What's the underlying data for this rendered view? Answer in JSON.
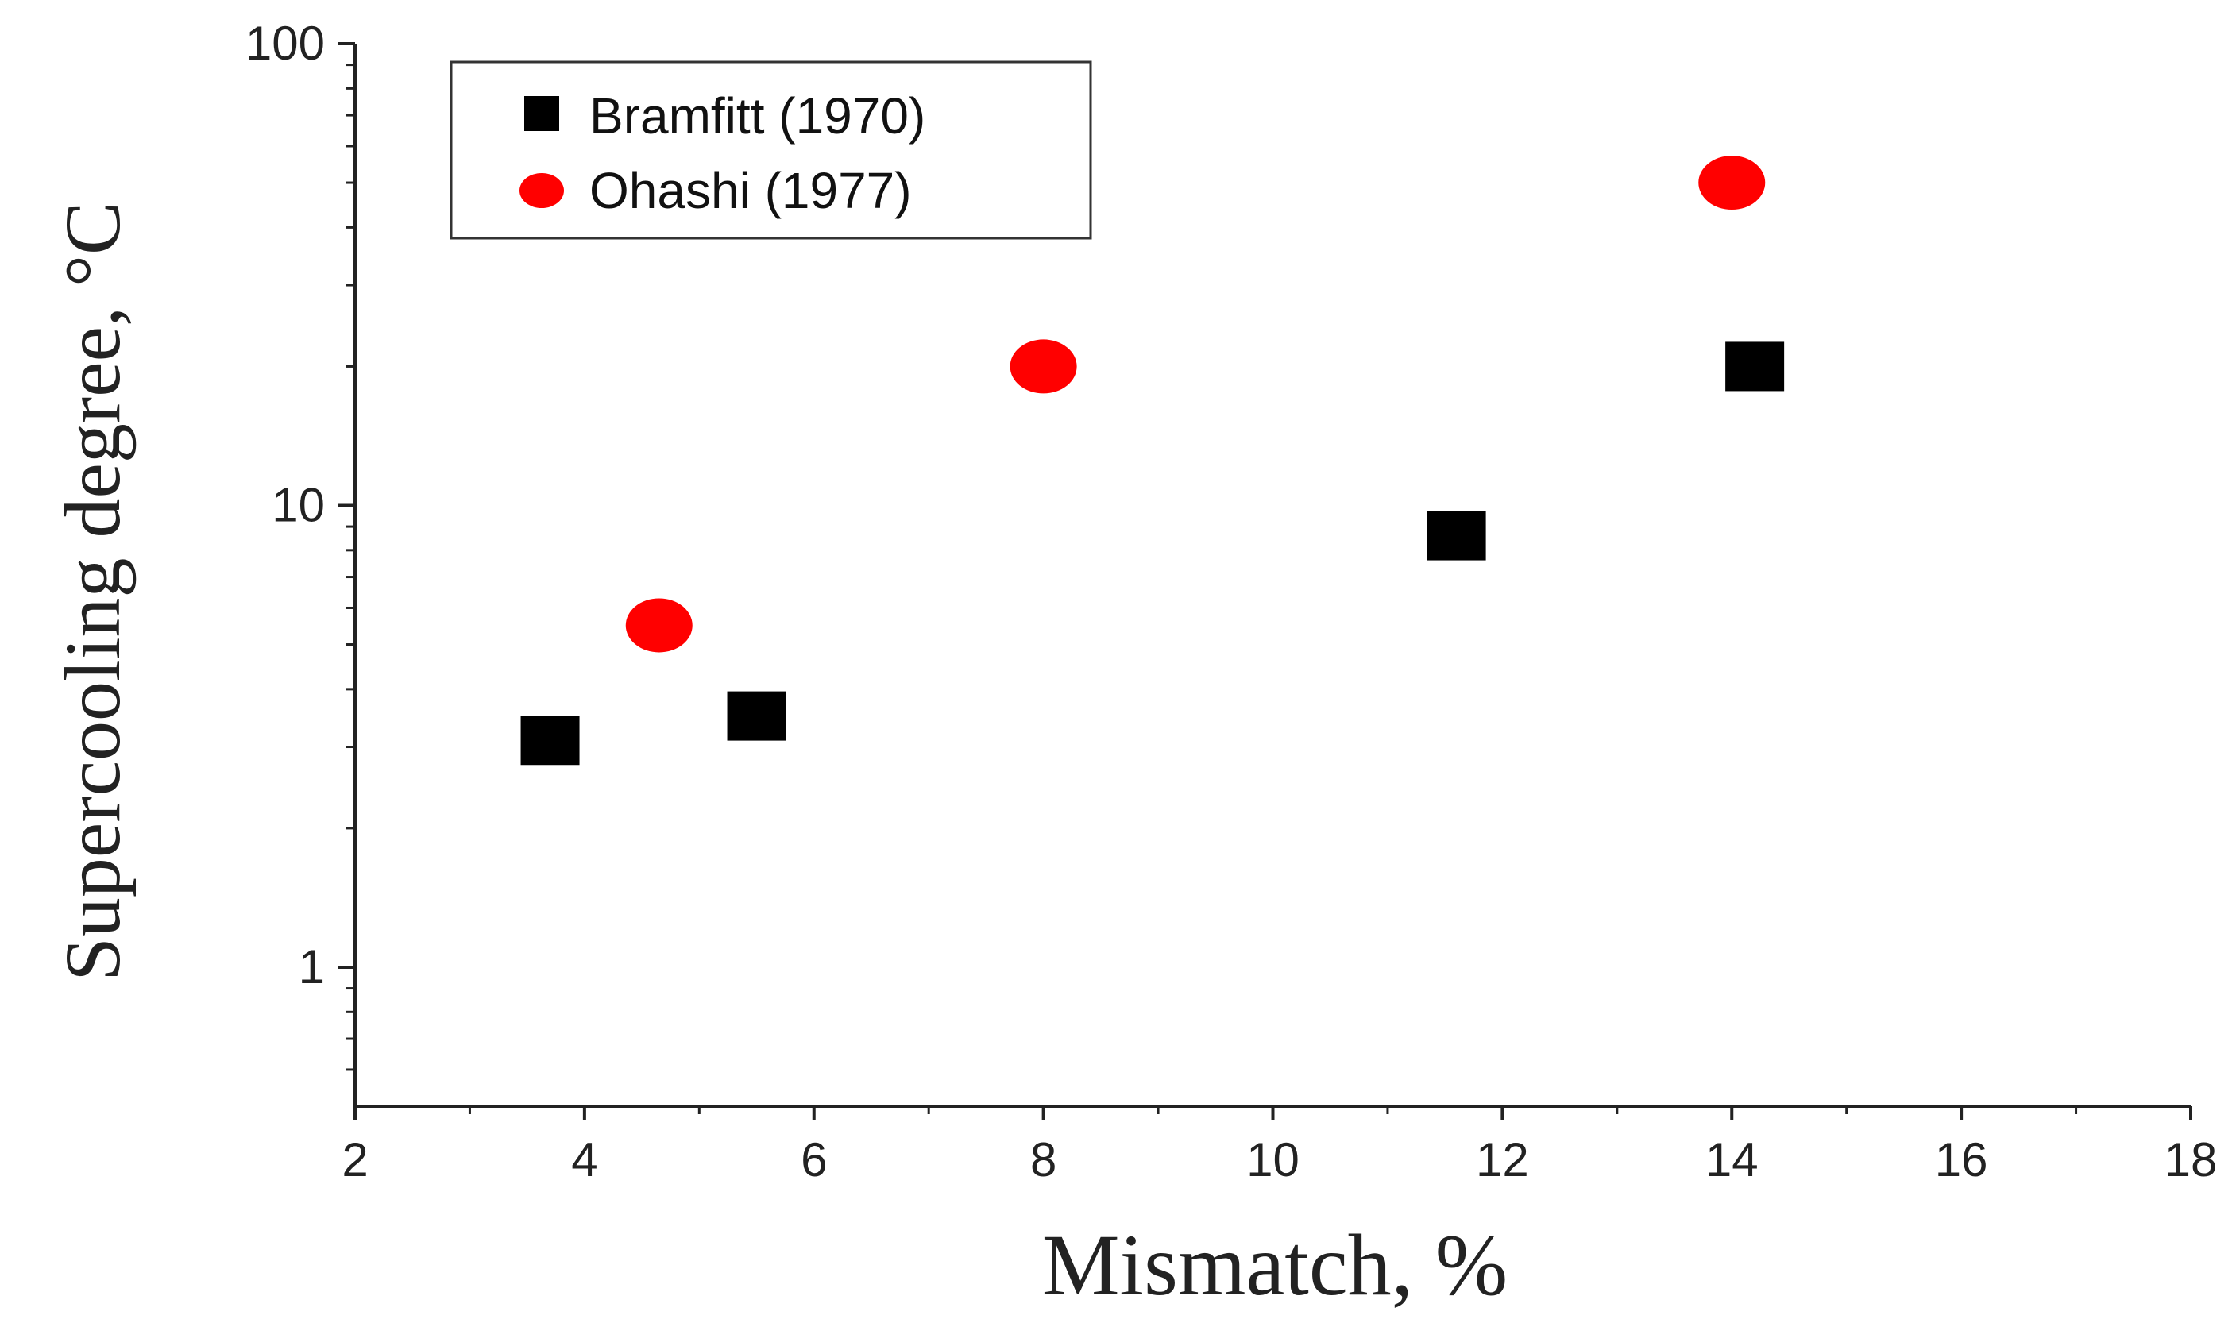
{
  "chart_data": {
    "type": "scatter",
    "xlabel": "Mismatch, %",
    "ylabel": "Supercooling degree, °C",
    "xlim": [
      2,
      18
    ],
    "ylim": [
      0.5,
      100
    ],
    "yscale": "log",
    "x_ticks": [
      "2",
      "4",
      "6",
      "8",
      "10",
      "12",
      "14",
      "16",
      "18"
    ],
    "y_ticks": [
      "1",
      "10",
      "100"
    ],
    "grid": false,
    "legend_position": "top-left",
    "series": [
      {
        "name": "Bramfitt (1970)",
        "marker": "square",
        "color": "#000000",
        "x": [
          3.7,
          5.5,
          11.6,
          14.2
        ],
        "y": [
          3.1,
          3.5,
          8.6,
          20
        ]
      },
      {
        "name": "Ohashi (1977)",
        "marker": "circle",
        "color": "#ff0000",
        "x": [
          4.65,
          8.0,
          14.0
        ],
        "y": [
          5.5,
          20,
          50
        ]
      }
    ]
  }
}
